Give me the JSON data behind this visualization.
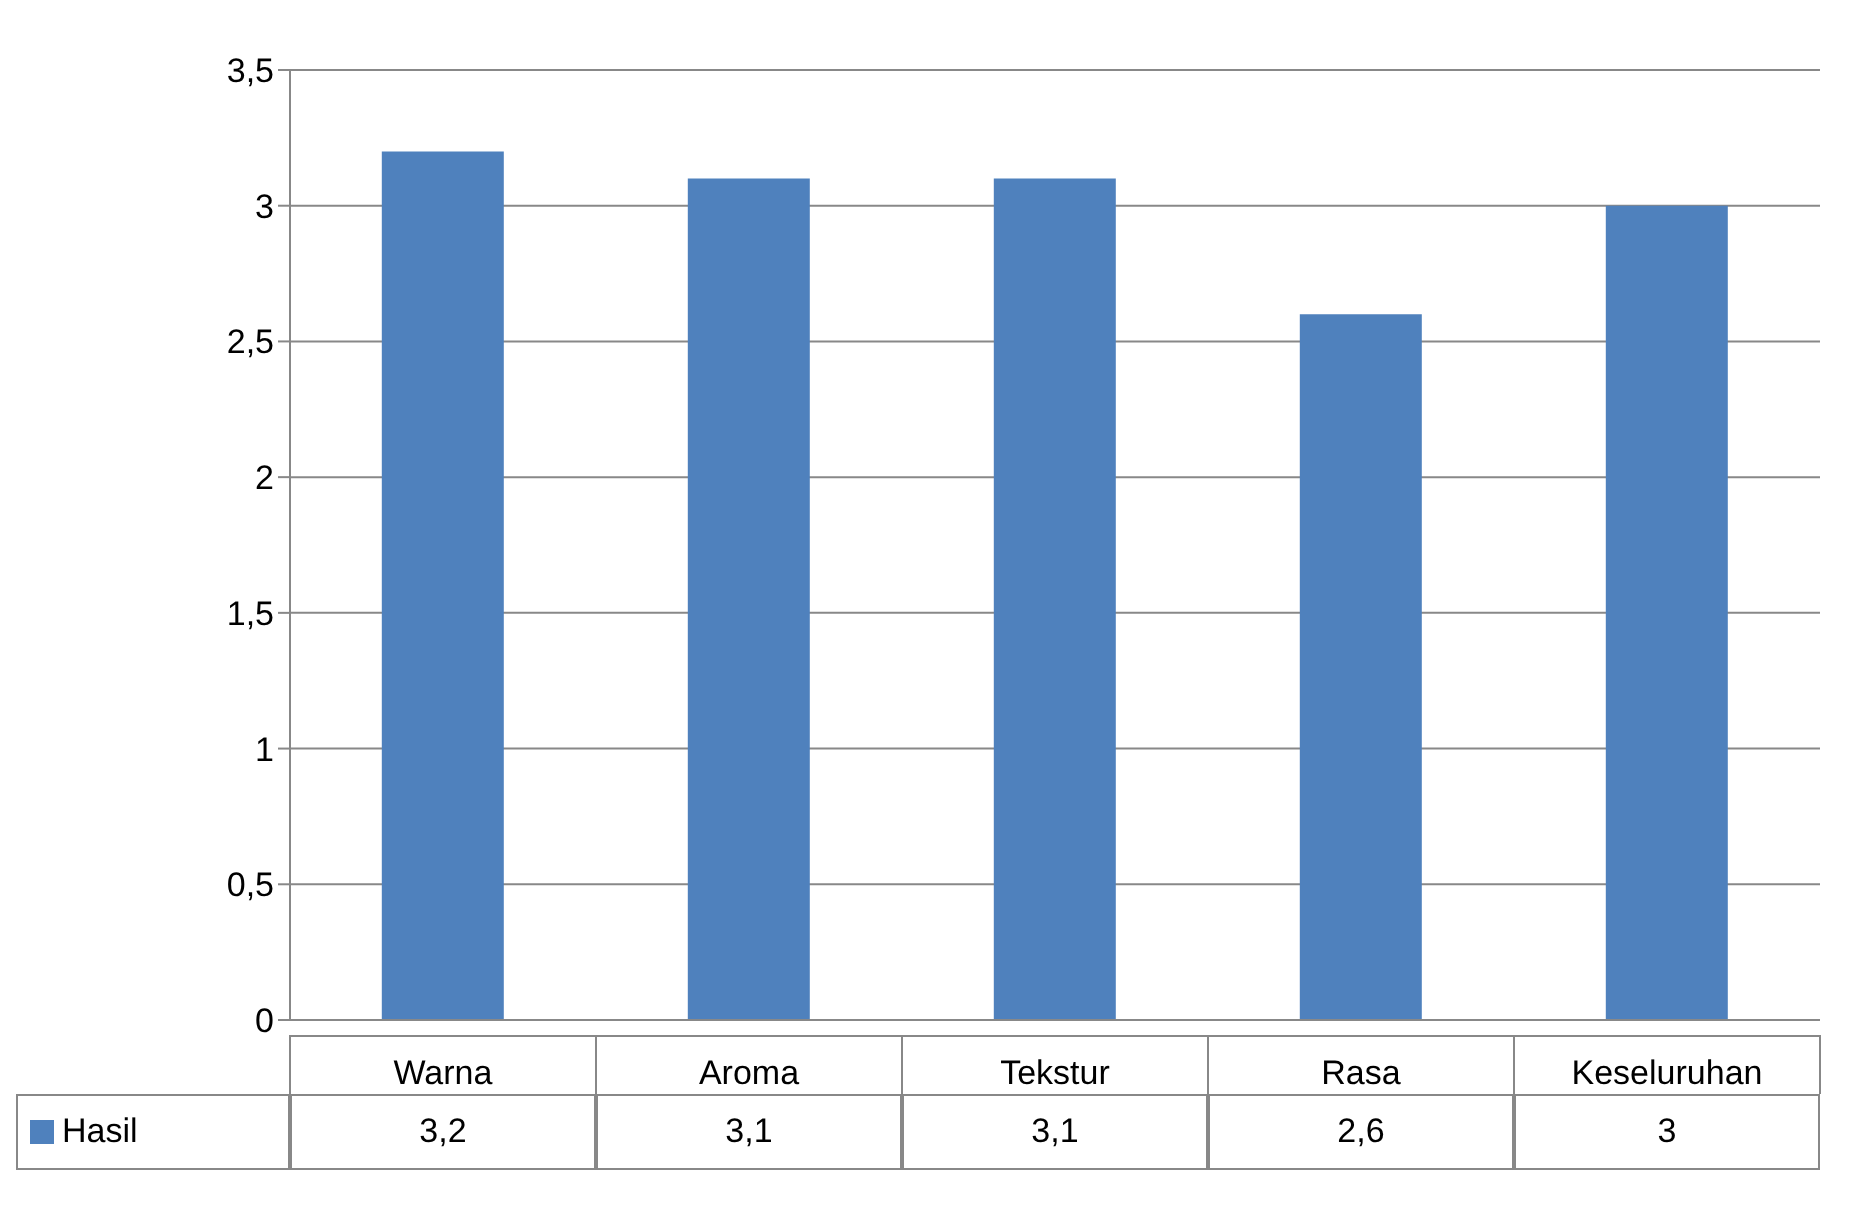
{
  "chart_data": {
    "type": "bar",
    "categories": [
      "Warna",
      "Aroma",
      "Tekstur",
      "Rasa",
      "Keseluruhan"
    ],
    "series": [
      {
        "name": "Hasil",
        "color": "#4f81bd",
        "values": [
          3.2,
          3.1,
          3.1,
          2.6,
          3
        ],
        "value_labels": [
          "3,2",
          "3,1",
          "3,1",
          "2,6",
          "3"
        ]
      }
    ],
    "ylim": [
      0,
      3.5
    ],
    "yticks": [
      0,
      {
        "value": 0.5,
        "label": "0,5"
      },
      1,
      {
        "value": 1.5,
        "label": "1,5"
      },
      2,
      {
        "value": 2.5,
        "label": "2,5"
      },
      3,
      {
        "value": 3.5,
        "label": "3,5"
      }
    ],
    "grid": "y",
    "legend": "bottom"
  }
}
